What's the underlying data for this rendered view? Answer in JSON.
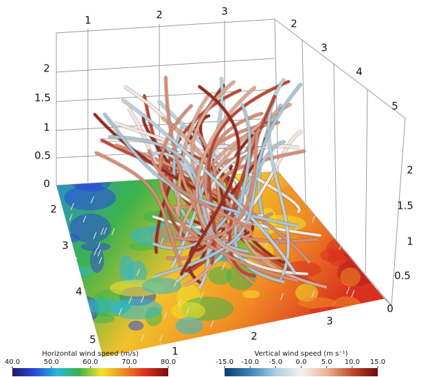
{
  "axes": {
    "top_x": [
      1,
      2,
      3
    ],
    "top_right": [
      2,
      3,
      4,
      5
    ],
    "left_z": [
      0,
      0.5,
      1,
      1.5,
      2
    ],
    "right_z": [
      0,
      0.5,
      1,
      1.5,
      2
    ],
    "front_left": [
      2,
      3,
      4,
      5
    ],
    "front_bottom": [
      1,
      2,
      3
    ]
  },
  "colorbars": [
    {
      "title": "Horizontal wind speed (m/s)",
      "ticks": [
        {
          "value": 40,
          "label": "40.0"
        },
        {
          "value": 50,
          "label": "50.0"
        },
        {
          "value": 60,
          "label": "60.0"
        },
        {
          "value": 70,
          "label": "70.0"
        },
        {
          "value": 80,
          "label": "80.0"
        }
      ],
      "colors": [
        "#1a1a6e",
        "#2a4bd7",
        "#29b6d6",
        "#3cb44b",
        "#f2e22b",
        "#f08a24",
        "#d9301f",
        "#7a0c0c"
      ]
    },
    {
      "title": "Vertical wind speed (m s⁻¹)",
      "ticks": [
        {
          "value": -15,
          "label": "-15.0"
        },
        {
          "value": -10,
          "label": "-10.0"
        },
        {
          "value": -5,
          "label": "-5.0"
        },
        {
          "value": 0,
          "label": "0.0"
        },
        {
          "value": 5,
          "label": "5.0"
        },
        {
          "value": 10,
          "label": "10.0"
        },
        {
          "value": 15,
          "label": "15.0"
        }
      ],
      "colors": [
        "#0b3d6b",
        "#3b84b5",
        "#a9cfe0",
        "#f4f1ee",
        "#eab49a",
        "#c2482c",
        "#6b0b0b"
      ]
    }
  ]
}
